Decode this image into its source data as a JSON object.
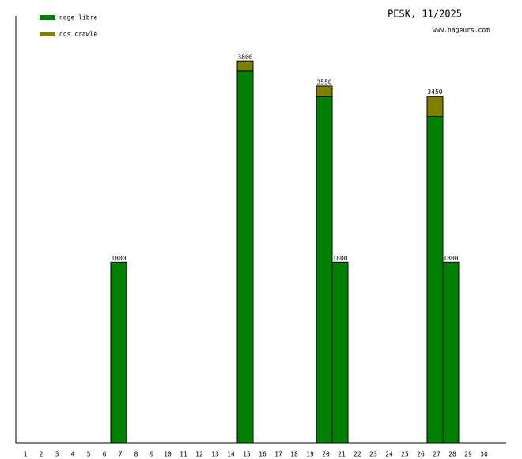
{
  "chart_data": {
    "type": "stacked-bar",
    "title": "PESK, 11/2025",
    "subtitle": "www.nageurs.com",
    "categories": [
      "1",
      "2",
      "3",
      "4",
      "5",
      "6",
      "7",
      "8",
      "9",
      "10",
      "11",
      "12",
      "13",
      "14",
      "15",
      "16",
      "17",
      "18",
      "19",
      "20",
      "21",
      "22",
      "23",
      "24",
      "25",
      "26",
      "27",
      "28",
      "29",
      "30"
    ],
    "series": [
      {
        "name": "nage libre",
        "color": "#008000",
        "values": [
          null,
          null,
          null,
          null,
          null,
          null,
          1800,
          null,
          null,
          null,
          null,
          null,
          null,
          null,
          3700,
          null,
          null,
          null,
          null,
          3450,
          1800,
          null,
          null,
          null,
          null,
          null,
          3250,
          1800,
          null,
          null
        ]
      },
      {
        "name": "dos crawlé",
        "color": "#808000",
        "values": [
          null,
          null,
          null,
          null,
          null,
          null,
          null,
          null,
          null,
          null,
          null,
          null,
          null,
          null,
          100,
          null,
          null,
          null,
          null,
          100,
          null,
          null,
          null,
          null,
          null,
          null,
          200,
          null,
          null,
          null
        ]
      }
    ],
    "totals": [
      null,
      null,
      null,
      null,
      null,
      null,
      1800,
      null,
      null,
      null,
      null,
      null,
      null,
      null,
      3800,
      null,
      null,
      null,
      null,
      3550,
      1800,
      null,
      null,
      null,
      null,
      null,
      3450,
      1800,
      null,
      null
    ],
    "ylim": [
      0,
      4250
    ]
  }
}
